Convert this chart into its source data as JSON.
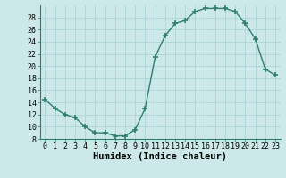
{
  "x": [
    0,
    1,
    2,
    3,
    4,
    5,
    6,
    7,
    8,
    9,
    10,
    11,
    12,
    13,
    14,
    15,
    16,
    17,
    18,
    19,
    20,
    21,
    22,
    23
  ],
  "y": [
    14.5,
    13.0,
    12.0,
    11.5,
    10.0,
    9.0,
    9.0,
    8.5,
    8.5,
    9.5,
    13.0,
    21.5,
    25.0,
    27.0,
    27.5,
    29.0,
    29.5,
    29.5,
    29.5,
    29.0,
    27.0,
    24.5,
    19.5,
    18.5
  ],
  "xlabel": "Humidex (Indice chaleur)",
  "ylim": [
    8,
    30
  ],
  "yticks": [
    8,
    10,
    12,
    14,
    16,
    18,
    20,
    22,
    24,
    26,
    28
  ],
  "ytick_labels": [
    "8",
    "10",
    "12",
    "14",
    "16",
    "18",
    "20",
    "22",
    "24",
    "26",
    "28"
  ],
  "xticks": [
    0,
    1,
    2,
    3,
    4,
    5,
    6,
    7,
    8,
    9,
    10,
    11,
    12,
    13,
    14,
    15,
    16,
    17,
    18,
    19,
    20,
    21,
    22,
    23
  ],
  "line_color": "#2e7d6e",
  "marker_color": "#2e7d6e",
  "bg_color": "#cce8e8",
  "grid_color": "#b0d8d8",
  "tick_label_fontsize": 6.0,
  "xlabel_fontsize": 7.5,
  "line_width": 1.0,
  "marker_size": 4
}
